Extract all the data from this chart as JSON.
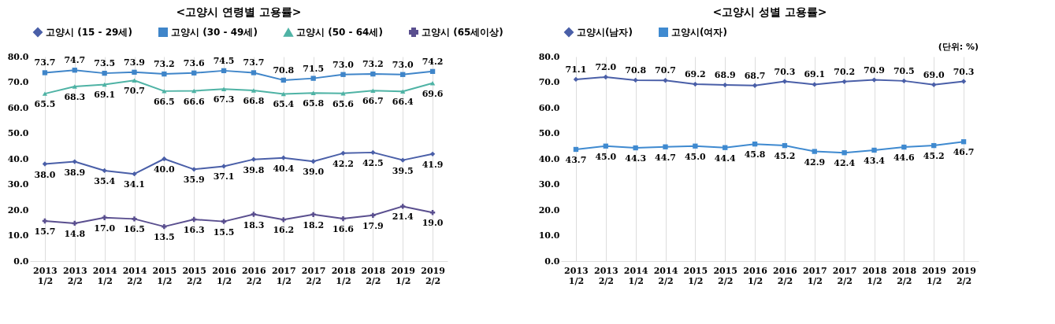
{
  "chart_data": [
    {
      "type": "line",
      "title": "<고양시 연령별 고용률>",
      "categories": [
        "2013 1/2",
        "2013 2/2",
        "2014 1/2",
        "2014 2/2",
        "2015 1/2",
        "2015 2/2",
        "2016 1/2",
        "2016 2/2",
        "2017 1/2",
        "2017 2/2",
        "2018 1/2",
        "2018 2/2",
        "2019 1/2",
        "2019 2/2"
      ],
      "series": [
        {
          "name": "고양시 (15 - 29세)",
          "color": "#4a5fa8",
          "marker": "diamond",
          "values": [
            38.0,
            38.9,
            35.4,
            34.1,
            40.0,
            35.9,
            37.1,
            39.8,
            40.4,
            39.0,
            42.2,
            42.5,
            39.5,
            41.9
          ],
          "value_labels": [
            "38.0",
            "38.9",
            "35.4",
            "34.1",
            "40.0",
            "35.9",
            "37.1",
            "39.8",
            "40.4",
            "39.0",
            "42.2",
            "42.5",
            "39.5",
            "41.9"
          ]
        },
        {
          "name": "고양시 (30 - 49세)",
          "color": "#3f85c9",
          "marker": "square",
          "values": [
            73.7,
            74.7,
            73.5,
            73.9,
            73.2,
            73.6,
            74.5,
            73.7,
            70.8,
            71.5,
            73.0,
            73.2,
            73.0,
            74.2
          ],
          "value_labels": [
            "73.7",
            "74.7",
            "73.5",
            "73.9",
            "73.2",
            "73.6",
            "74.5",
            "73.7",
            "70.8",
            "71.5",
            "73.0",
            "73.2",
            "73.0",
            "74.2"
          ]
        },
        {
          "name": "고양시 (50 - 64세)",
          "color": "#4fb3a5",
          "marker": "triangle",
          "values": [
            65.5,
            68.3,
            69.1,
            70.7,
            66.5,
            66.6,
            67.3,
            66.8,
            65.4,
            65.8,
            65.6,
            66.7,
            66.4,
            69.6
          ],
          "value_labels": [
            "65.5",
            "68.3",
            "69.1",
            "70.7",
            "66.5",
            "66.6",
            "67.3",
            "66.8",
            "65.4",
            "65.8",
            "65.6",
            "66.7",
            "66.4",
            "69.6"
          ]
        },
        {
          "name": "고양시 (65세이상)",
          "color": "#5a4f8f",
          "marker": "cross",
          "values": [
            15.7,
            14.8,
            17.0,
            16.5,
            13.5,
            16.3,
            15.5,
            18.3,
            16.2,
            18.2,
            16.6,
            17.9,
            21.4,
            19.0
          ],
          "value_labels": [
            "15.7",
            "14.8",
            "17.0",
            "16.5",
            "13.5",
            "16.3",
            "15.5",
            "18.3",
            "16.2",
            "18.2",
            "16.6",
            "17.9",
            "21.4",
            "19.0"
          ]
        }
      ],
      "ylim": [
        0,
        80
      ],
      "yticks": [
        {
          "value": 0,
          "label": "0.0"
        },
        {
          "value": 10,
          "label": "10.0"
        },
        {
          "value": 20,
          "label": "20.0"
        },
        {
          "value": 30,
          "label": "30.0"
        },
        {
          "value": 40,
          "label": "40.0"
        },
        {
          "value": 50,
          "label": "50.0"
        },
        {
          "value": 60,
          "label": "60.0"
        },
        {
          "value": 70,
          "label": "70.0"
        },
        {
          "value": 80,
          "label": "80.0"
        }
      ],
      "grid": "x",
      "legend": "top"
    },
    {
      "type": "line",
      "title": "<고양시 성별 고용률>",
      "categories": [
        "2013 1/2",
        "2013 2/2",
        "2014 1/2",
        "2014 2/2",
        "2015 1/2",
        "2015 2/2",
        "2016 1/2",
        "2016 2/2",
        "2017 1/2",
        "2017 2/2",
        "2018 1/2",
        "2018 2/2",
        "2019 1/2",
        "2019 2/2"
      ],
      "series": [
        {
          "name": "고양시(남자)",
          "color": "#4a5fa8",
          "marker": "diamond",
          "values": [
            71.1,
            72.0,
            70.8,
            70.7,
            69.2,
            68.9,
            68.7,
            70.3,
            69.1,
            70.2,
            70.9,
            70.5,
            69.0,
            70.3
          ],
          "value_labels": [
            "71.1",
            "72.0",
            "70.8",
            "70.7",
            "69.2",
            "68.9",
            "68.7",
            "70.3",
            "69.1",
            "70.2",
            "70.9",
            "70.5",
            "69.0",
            "70.3"
          ]
        },
        {
          "name": "고양시(여자)",
          "color": "#3f8ad0",
          "marker": "square",
          "values": [
            43.7,
            45.0,
            44.3,
            44.7,
            45.0,
            44.4,
            45.8,
            45.2,
            42.9,
            42.4,
            43.4,
            44.6,
            45.2,
            46.7
          ],
          "value_labels": [
            "43.7",
            "45.0",
            "44.3",
            "44.7",
            "45.0",
            "44.4",
            "45.8",
            "45.2",
            "42.9",
            "42.4",
            "43.4",
            "44.6",
            "45.2",
            "46.7"
          ]
        }
      ],
      "ylim": [
        0,
        80
      ],
      "yticks": [
        {
          "value": 0,
          "label": "0.0"
        },
        {
          "value": 10,
          "label": "10.0"
        },
        {
          "value": 20,
          "label": "20.0"
        },
        {
          "value": 30,
          "label": "30.0"
        },
        {
          "value": 40,
          "label": "40.0"
        },
        {
          "value": 50,
          "label": "50.0"
        },
        {
          "value": 60,
          "label": "60.0"
        },
        {
          "value": 70,
          "label": "70.0"
        },
        {
          "value": 80,
          "label": "80.0"
        }
      ],
      "grid": "x",
      "legend": "top",
      "annotations": [
        "(단위: %)"
      ]
    }
  ]
}
